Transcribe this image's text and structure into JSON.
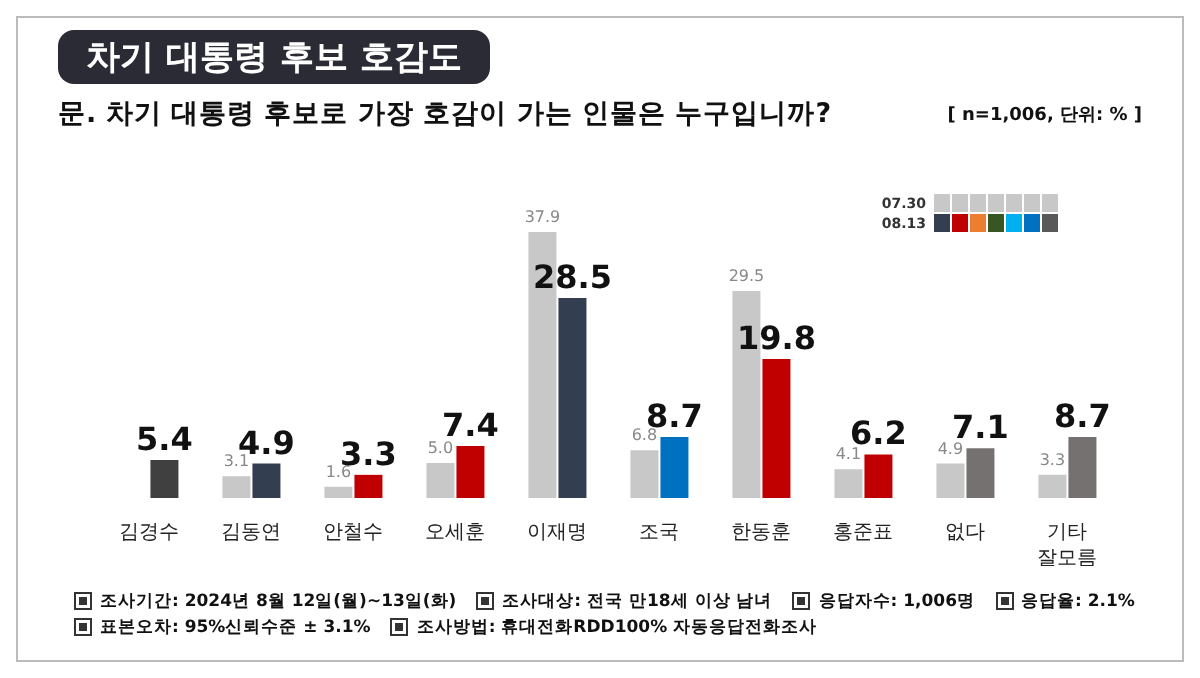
{
  "chart_data": {
    "type": "bar",
    "title": "차기 대통령 후보 호감도",
    "subtitle": "문. 차기 대통령 후보로 가장 호감이 가는 인물은 누구입니까?",
    "categories": [
      "김경수",
      "김동연",
      "안철수",
      "오세훈",
      "이재명",
      "조국",
      "한동훈",
      "홍준표",
      "없다",
      "기타 잘모름"
    ],
    "series": [
      {
        "name": "07.30",
        "color": "#c8c8c8",
        "values": [
          null,
          3.1,
          1.6,
          5.0,
          37.9,
          6.8,
          29.5,
          4.1,
          4.9,
          3.3
        ],
        "value_labels": [
          null,
          "3.1",
          "1.6",
          "5.0",
          "37.9",
          "6.8",
          "29.5",
          "4.1",
          "4.9",
          "3.3"
        ]
      },
      {
        "name": "08.13",
        "color": "#333f50",
        "colors": [
          "#404040",
          "#333f50",
          "#c00000",
          "#c00000",
          "#333f50",
          "#0070c0",
          "#c00000",
          "#c00000",
          "#767171",
          "#767171"
        ],
        "values": [
          5.4,
          4.9,
          3.3,
          7.4,
          28.5,
          8.7,
          19.8,
          6.2,
          7.1,
          8.7
        ],
        "value_labels": [
          "5.4",
          "4.9",
          "3.3",
          "7.4",
          "28.5",
          "8.7",
          "19.8",
          "6.2",
          "7.1",
          "8.7"
        ]
      }
    ],
    "legend": "top right",
    "grid": false,
    "annotations": [
      "[ n=1,006, 단위: % ]",
      "조사기간: 2024년 8월 12일(월)~13일(화)",
      "조사대상: 전국 만18세 이상 남녀",
      "응답자수: 1,006명",
      "응답율: 2.1%",
      "표본오차: 95%신뢰수준 ± 3.1%",
      "조사방법: 휴대전화RDD100% 자동응답전화조사"
    ]
  }
}
